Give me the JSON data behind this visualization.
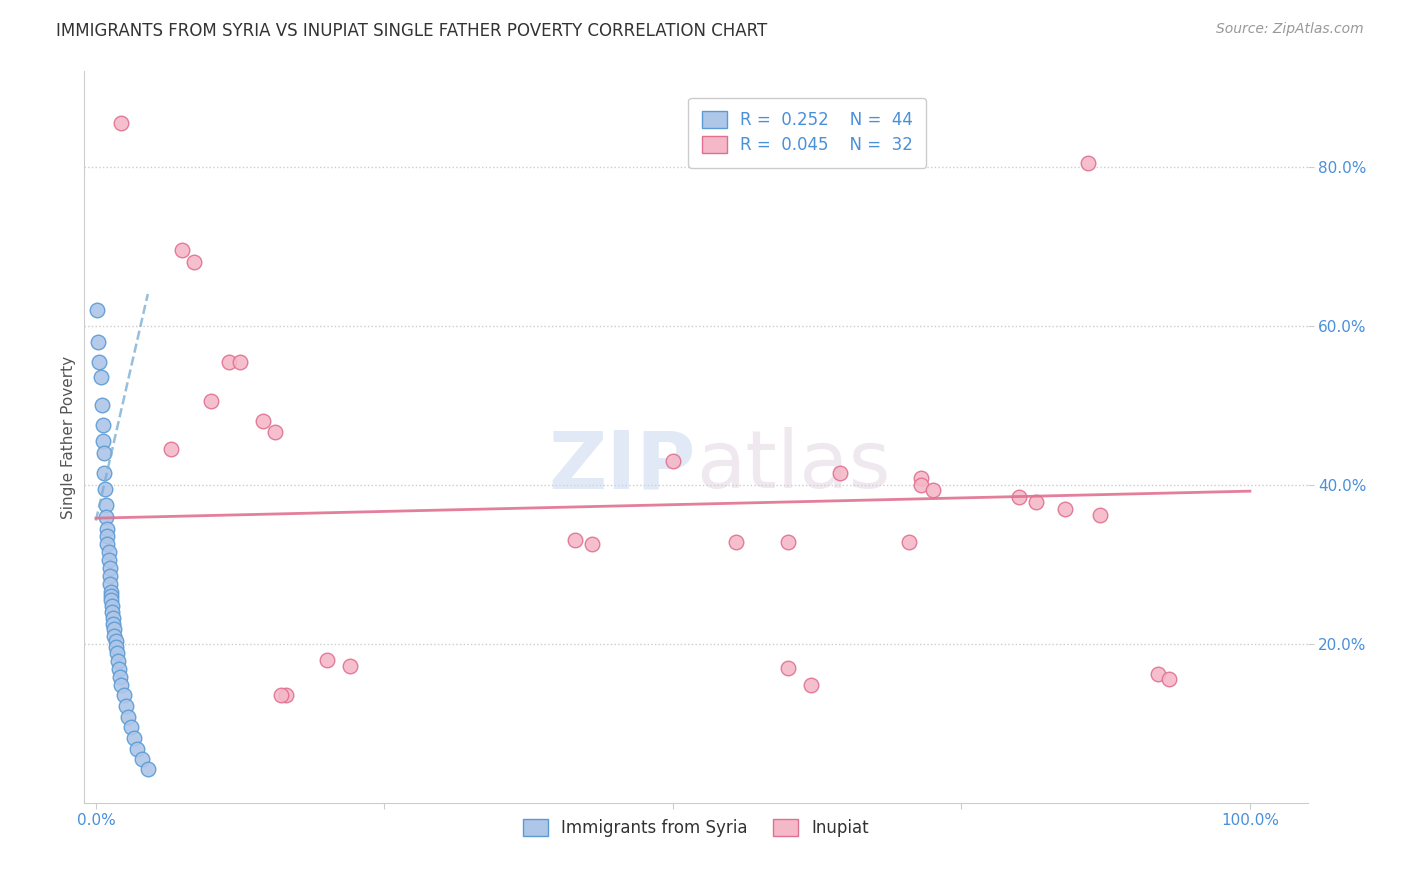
{
  "title": "IMMIGRANTS FROM SYRIA VS INUPIAT SINGLE FATHER POVERTY CORRELATION CHART",
  "source": "Source: ZipAtlas.com",
  "ylabel": "Single Father Poverty",
  "watermark_zip": "ZIP",
  "watermark_atlas": "atlas",
  "xlim": [
    -0.01,
    1.05
  ],
  "ylim": [
    0.0,
    0.92
  ],
  "yticks": [
    0.2,
    0.4,
    0.6,
    0.8
  ],
  "ytick_labels": [
    "20.0%",
    "40.0%",
    "60.0%",
    "80.0%"
  ],
  "xticks": [
    0.0,
    0.25,
    0.5,
    0.75,
    1.0
  ],
  "xtick_labels": [
    "0.0%",
    "",
    "",
    "",
    "100.0%"
  ],
  "legend_r1": "R =  0.252",
  "legend_n1": "N =  44",
  "legend_r2": "R =  0.045",
  "legend_n2": "N =  32",
  "blue_fill": "#aec6e8",
  "blue_edge": "#5b9bd5",
  "pink_fill": "#f4b8c8",
  "pink_edge": "#e07090",
  "blue_trend_color": "#7bafd4",
  "pink_trend_color": "#e07090",
  "blue_scatter": [
    [
      0.001,
      0.62
    ],
    [
      0.002,
      0.58
    ],
    [
      0.003,
      0.555
    ],
    [
      0.004,
      0.535
    ],
    [
      0.005,
      0.5
    ],
    [
      0.006,
      0.475
    ],
    [
      0.006,
      0.455
    ],
    [
      0.007,
      0.44
    ],
    [
      0.007,
      0.415
    ],
    [
      0.008,
      0.395
    ],
    [
      0.009,
      0.375
    ],
    [
      0.009,
      0.36
    ],
    [
      0.01,
      0.345
    ],
    [
      0.01,
      0.335
    ],
    [
      0.01,
      0.325
    ],
    [
      0.011,
      0.315
    ],
    [
      0.011,
      0.305
    ],
    [
      0.012,
      0.295
    ],
    [
      0.012,
      0.285
    ],
    [
      0.012,
      0.275
    ],
    [
      0.013,
      0.265
    ],
    [
      0.013,
      0.26
    ],
    [
      0.013,
      0.255
    ],
    [
      0.014,
      0.248
    ],
    [
      0.014,
      0.24
    ],
    [
      0.015,
      0.232
    ],
    [
      0.015,
      0.225
    ],
    [
      0.016,
      0.218
    ],
    [
      0.016,
      0.21
    ],
    [
      0.017,
      0.203
    ],
    [
      0.017,
      0.196
    ],
    [
      0.018,
      0.188
    ],
    [
      0.019,
      0.178
    ],
    [
      0.02,
      0.168
    ],
    [
      0.021,
      0.158
    ],
    [
      0.022,
      0.148
    ],
    [
      0.024,
      0.135
    ],
    [
      0.026,
      0.122
    ],
    [
      0.028,
      0.108
    ],
    [
      0.03,
      0.095
    ],
    [
      0.033,
      0.082
    ],
    [
      0.036,
      0.068
    ],
    [
      0.04,
      0.055
    ],
    [
      0.045,
      0.042
    ]
  ],
  "pink_scatter": [
    [
      0.022,
      0.855
    ],
    [
      0.86,
      0.805
    ],
    [
      0.075,
      0.695
    ],
    [
      0.085,
      0.68
    ],
    [
      0.115,
      0.555
    ],
    [
      0.125,
      0.555
    ],
    [
      0.1,
      0.505
    ],
    [
      0.145,
      0.48
    ],
    [
      0.155,
      0.467
    ],
    [
      0.065,
      0.445
    ],
    [
      0.5,
      0.43
    ],
    [
      0.645,
      0.415
    ],
    [
      0.715,
      0.408
    ],
    [
      0.715,
      0.4
    ],
    [
      0.725,
      0.393
    ],
    [
      0.8,
      0.385
    ],
    [
      0.815,
      0.378
    ],
    [
      0.84,
      0.37
    ],
    [
      0.87,
      0.362
    ],
    [
      0.415,
      0.33
    ],
    [
      0.43,
      0.325
    ],
    [
      0.555,
      0.328
    ],
    [
      0.6,
      0.328
    ],
    [
      0.705,
      0.328
    ],
    [
      0.2,
      0.18
    ],
    [
      0.22,
      0.172
    ],
    [
      0.165,
      0.135
    ],
    [
      0.6,
      0.17
    ],
    [
      0.92,
      0.162
    ],
    [
      0.93,
      0.156
    ],
    [
      0.16,
      0.135
    ],
    [
      0.62,
      0.148
    ]
  ],
  "blue_trend_x": [
    0.0,
    0.045
  ],
  "blue_trend_y": [
    0.355,
    0.64
  ],
  "pink_trend_x": [
    0.0,
    1.0
  ],
  "pink_trend_y": [
    0.358,
    0.392
  ],
  "grid_color": "#cccccc",
  "bg_color": "#ffffff",
  "tick_color": "#4a90d9",
  "title_color": "#333333",
  "source_color": "#999999"
}
